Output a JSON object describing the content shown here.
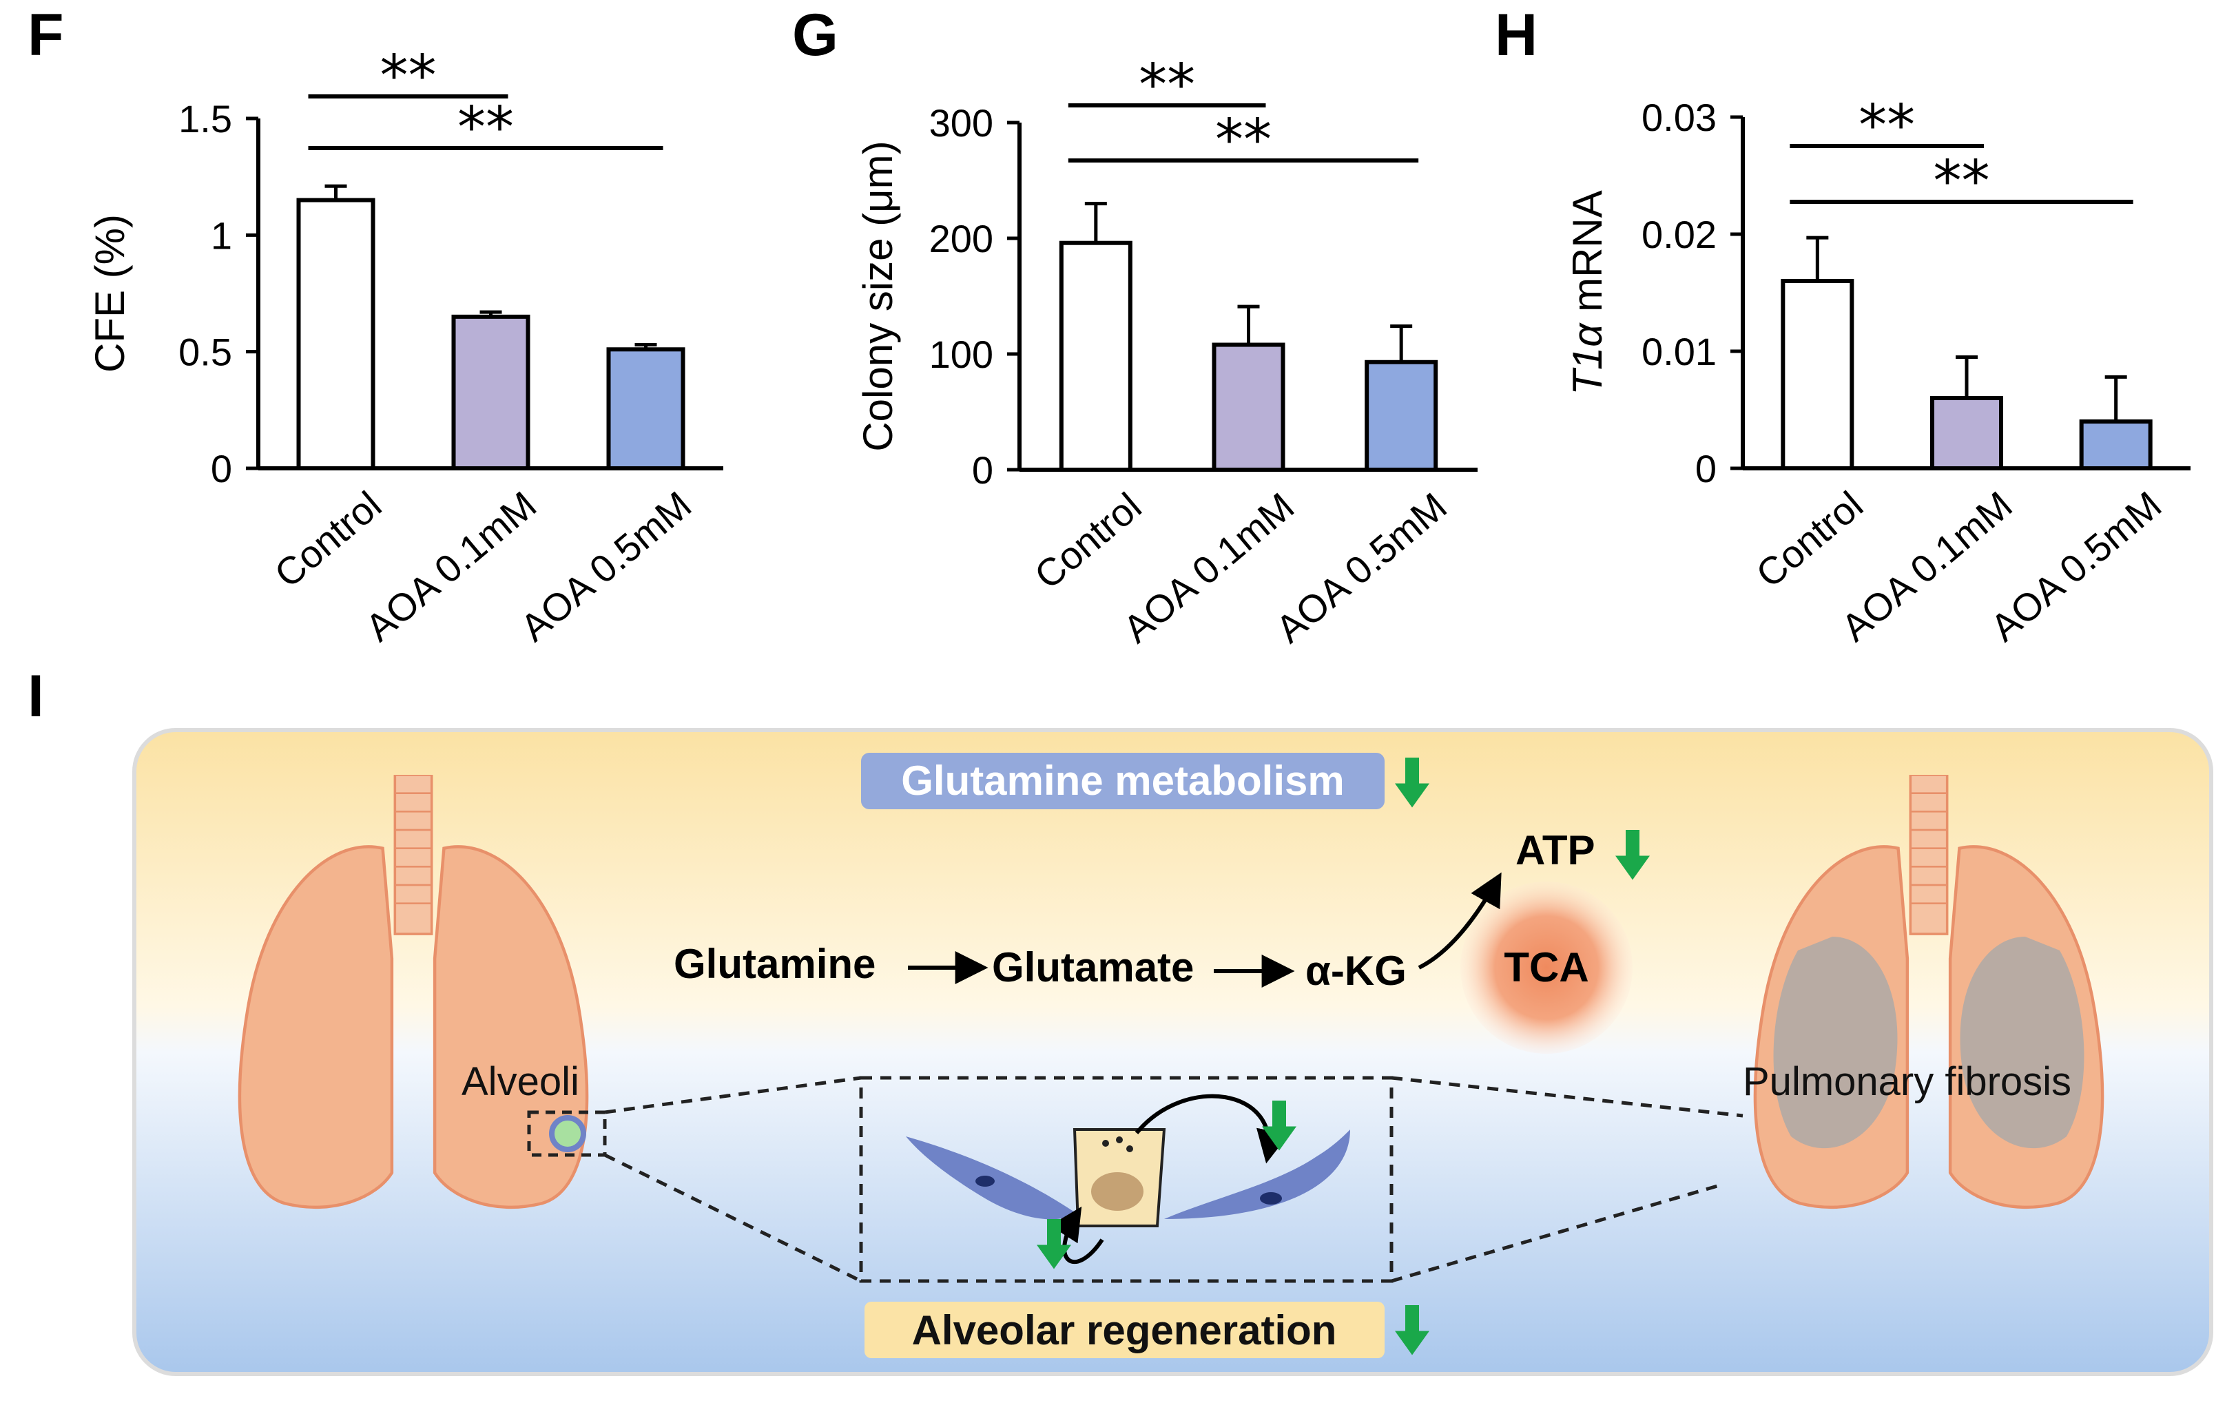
{
  "colors": {
    "control": "#ffffff",
    "aoa_01": "#b8b0d6",
    "aoa_05": "#8ea8df",
    "arrow_down": "#1aa84a",
    "lung": "#f3b48e",
    "lung_stroke": "#e8906a",
    "fibrosis": "#a9a9a9",
    "tca": "#ef8a5e",
    "label_blue_bg": "#94a9db",
    "label_yellow_bg": "#fbe3a6"
  },
  "chart_data": [
    {
      "panel": "F",
      "type": "bar",
      "categories": [
        "Control",
        "AOA 0.1mM",
        "AOA 0.5mM"
      ],
      "values": [
        1.15,
        0.65,
        0.51
      ],
      "errors": [
        0.06,
        0.02,
        0.02
      ],
      "ylabel": "CFE (%)",
      "ylim": [
        0,
        1.5
      ],
      "yticks": [
        0,
        0.5,
        1,
        1.5
      ],
      "ytick_labels": [
        "0",
        "0.5",
        "1",
        "1.5"
      ],
      "significance": [
        {
          "from": 0,
          "to": 1,
          "label": "**"
        },
        {
          "from": 0,
          "to": 2,
          "label": "**"
        }
      ]
    },
    {
      "panel": "G",
      "type": "bar",
      "categories": [
        "Control",
        "AOA 0.1mM",
        "AOA 0.5mM"
      ],
      "values": [
        196,
        108,
        93
      ],
      "errors": [
        34,
        33,
        31
      ],
      "ylabel": "Colony size (μm)",
      "ylim": [
        0,
        300
      ],
      "yticks": [
        0,
        100,
        200,
        300
      ],
      "ytick_labels": [
        "0",
        "100",
        "200",
        "300"
      ],
      "significance": [
        {
          "from": 0,
          "to": 1,
          "label": "**"
        },
        {
          "from": 0,
          "to": 2,
          "label": "**"
        }
      ]
    },
    {
      "panel": "H",
      "type": "bar",
      "categories": [
        "Control",
        "AOA 0.1mM",
        "AOA 0.5mM"
      ],
      "values": [
        0.016,
        0.006,
        0.004
      ],
      "errors": [
        0.0037,
        0.0035,
        0.0038
      ],
      "ylabel_italic": "T1α",
      "ylabel_rest": " mRNA",
      "ylim": [
        0,
        0.03
      ],
      "yticks": [
        0,
        0.01,
        0.02,
        0.03
      ],
      "ytick_labels": [
        "0",
        "0.01",
        "0.02",
        "0.03"
      ],
      "significance": [
        {
          "from": 0,
          "to": 1,
          "label": "**"
        },
        {
          "from": 0,
          "to": 2,
          "label": "**"
        }
      ]
    }
  ],
  "schematic": {
    "panel": "I",
    "glutamine_metabolism": "Glutamine metabolism",
    "atp": "ATP",
    "tca": "TCA",
    "pathway": [
      "Glutamine",
      "Glutamate",
      "α-KG"
    ],
    "alveoli": "Alveoli",
    "pulmonary_fibrosis": "Pulmonary fibrosis",
    "alveolar_regeneration": "Alveolar regeneration"
  }
}
